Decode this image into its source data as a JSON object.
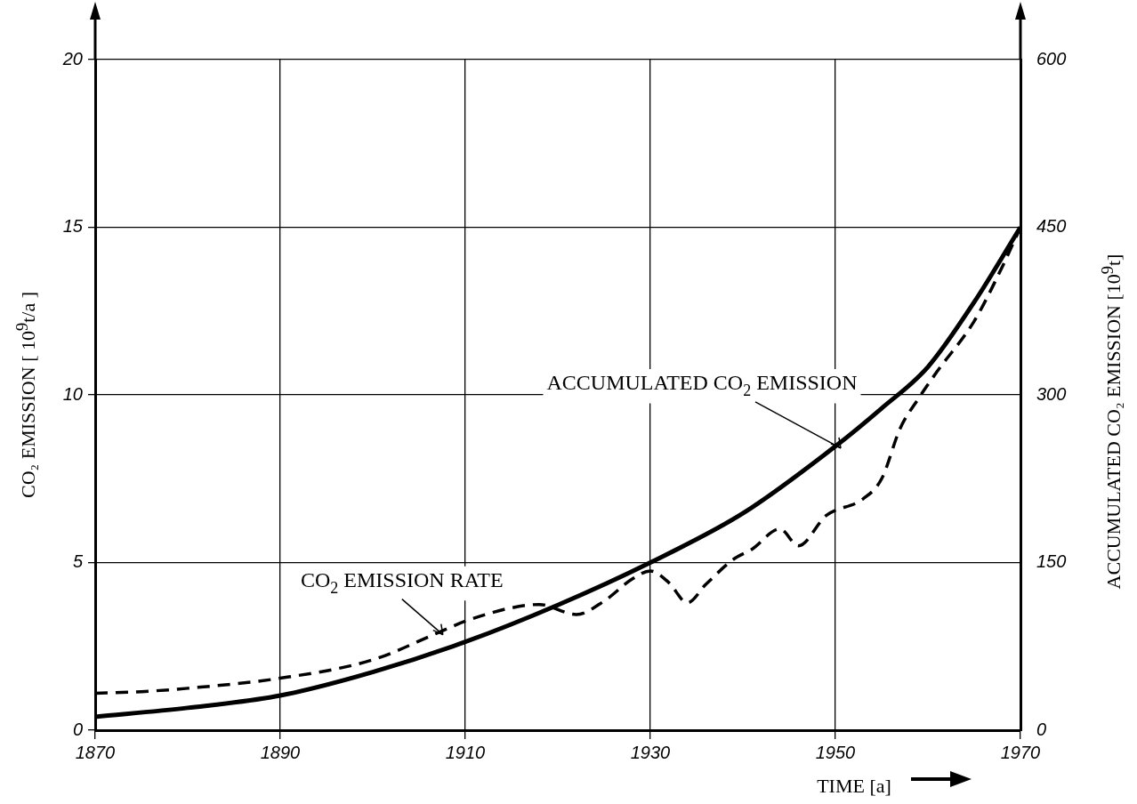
{
  "chart_data": {
    "type": "line",
    "xlabel": "TIME [a]",
    "ylabel": "CO₂ EMISSION [ 10$^{9}$t/a ]",
    "y2label": "ACCUMULATED CO₂ EMISSION [10$^{9}$t]",
    "xlim": [
      1870,
      1970
    ],
    "xticks": [
      1870,
      1890,
      1910,
      1930,
      1950,
      1970
    ],
    "ylim": [
      0,
      20
    ],
    "yticks": [
      0,
      5,
      10,
      15,
      20
    ],
    "y2lim": [
      0,
      600
    ],
    "y2ticks": [
      0,
      150,
      300,
      450,
      600
    ],
    "grid": true,
    "legend": false,
    "marker": "none",
    "series": [
      {
        "name": "CO$_{2}$ EMISSION RATE",
        "color": "#000000",
        "line_style": "dashed",
        "x": [
          1870,
          1875,
          1880,
          1890,
          1900,
          1907,
          1910,
          1915,
          1918,
          1922,
          1925,
          1928,
          1930,
          1932,
          1934,
          1936,
          1939,
          1941,
          1944,
          1946,
          1949,
          1953,
          1955,
          1957,
          1959,
          1961,
          1965,
          1968,
          1970
        ],
        "values": [
          1.1,
          1.15,
          1.25,
          1.55,
          2.1,
          2.9,
          3.25,
          3.65,
          3.75,
          3.45,
          3.85,
          4.5,
          4.75,
          4.4,
          3.8,
          4.35,
          5.1,
          5.4,
          6.0,
          5.5,
          6.4,
          6.9,
          7.5,
          9.0,
          9.9,
          10.7,
          12.2,
          13.8,
          15.0
        ]
      },
      {
        "name": "ACCUMULATED CO$_{2}$ EMISSION",
        "color": "#000000",
        "line_style": "solid",
        "axis": "y2",
        "x": [
          1870,
          1880,
          1890,
          1900,
          1910,
          1920,
          1930,
          1940,
          1950,
          1955,
          1960,
          1965,
          1970
        ],
        "values": [
          12,
          20,
          31,
          52,
          79,
          112,
          150,
          194,
          254,
          288,
          325,
          383,
          450
        ]
      }
    ]
  }
}
